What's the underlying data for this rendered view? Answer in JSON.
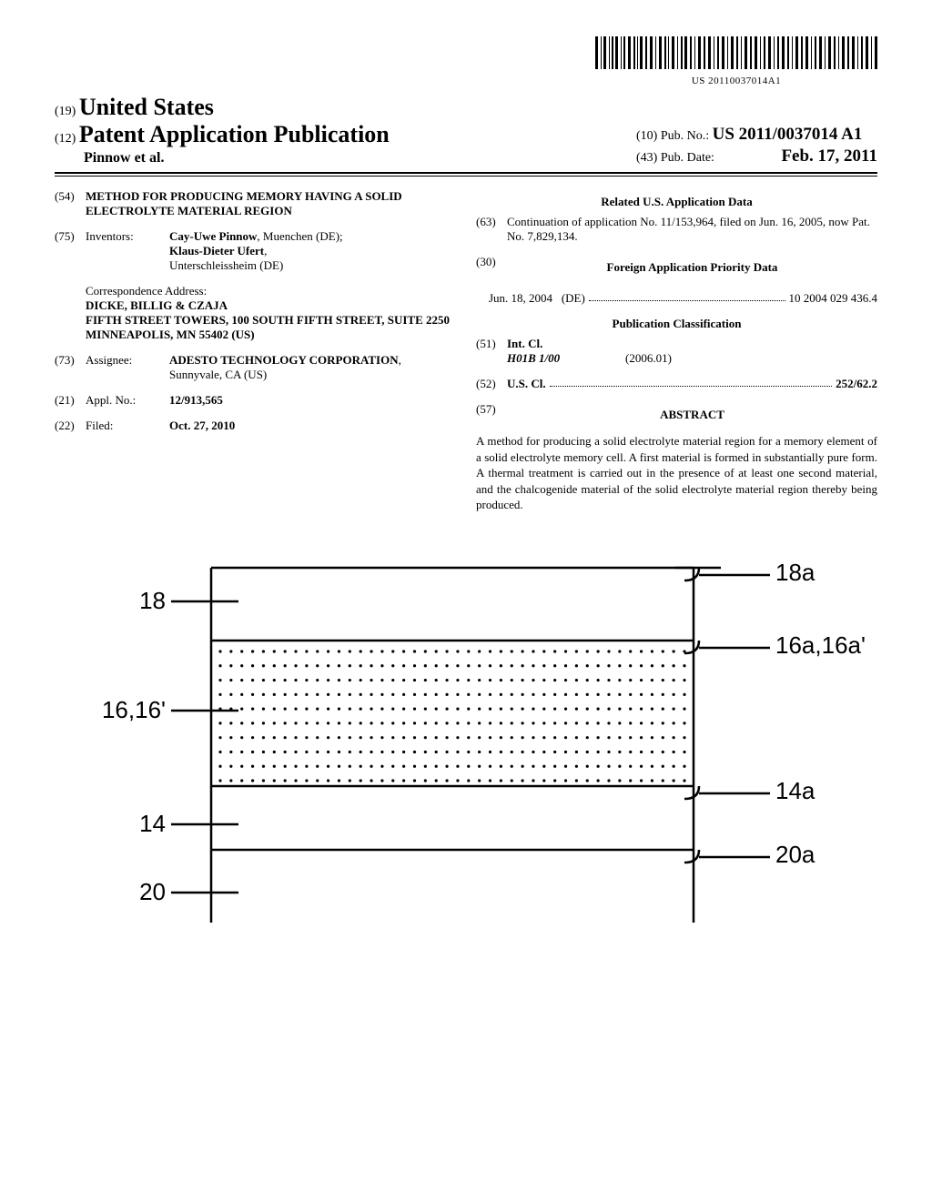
{
  "barcode_number": "US 20110037014A1",
  "header": {
    "country_code": "(19)",
    "country": "United States",
    "doc_code": "(12)",
    "doc_type": "Patent Application Publication",
    "authors": "Pinnow et al.",
    "pubno_code": "(10)",
    "pubno_label": "Pub. No.:",
    "pubno": "US 2011/0037014 A1",
    "pubdate_code": "(43)",
    "pubdate_label": "Pub. Date:",
    "pubdate": "Feb. 17, 2011"
  },
  "left": {
    "title_code": "(54)",
    "title": "METHOD FOR PRODUCING MEMORY HAVING A SOLID ELECTROLYTE MATERIAL REGION",
    "inventors_code": "(75)",
    "inventors_label": "Inventors:",
    "inventors_html_parts": {
      "inv1_name": "Cay-Uwe Pinnow",
      "inv1_loc": ", Muenchen (DE);",
      "inv2_name": "Klaus-Dieter Ufert",
      "inv2_loc": ",",
      "inv2_city": "Unterschleissheim (DE)"
    },
    "corr_heading": "Correspondence Address:",
    "corr_lines": [
      "DICKE, BILLIG & CZAJA",
      "FIFTH STREET TOWERS, 100 SOUTH FIFTH STREET, SUITE 2250",
      "MINNEAPOLIS, MN 55402 (US)"
    ],
    "assignee_code": "(73)",
    "assignee_label": "Assignee:",
    "assignee_name": "ADESTO TECHNOLOGY CORPORATION",
    "assignee_loc": ", Sunnyvale, CA (US)",
    "applno_code": "(21)",
    "applno_label": "Appl. No.:",
    "applno": "12/913,565",
    "filed_code": "(22)",
    "filed_label": "Filed:",
    "filed": "Oct. 27, 2010"
  },
  "right": {
    "related_heading": "Related U.S. Application Data",
    "related_code": "(63)",
    "related_text": "Continuation of application No. 11/153,964, filed on Jun. 16, 2005, now Pat. No. 7,829,134.",
    "foreign_code": "(30)",
    "foreign_heading": "Foreign Application Priority Data",
    "foreign_date": "Jun. 18, 2004",
    "foreign_country": "(DE)",
    "foreign_num": "10 2004 029 436.4",
    "pubclass_heading": "Publication Classification",
    "intcl_code": "(51)",
    "intcl_label": "Int. Cl.",
    "intcl_class": "H01B 1/00",
    "intcl_date": "(2006.01)",
    "uscl_code": "(52)",
    "uscl_label": "U.S. Cl.",
    "uscl_val": "252/62.2",
    "abstract_code": "(57)",
    "abstract_heading": "ABSTRACT",
    "abstract_text": "A method for producing a solid electrolyte material region for a memory element of a solid electrolyte memory cell. A first material is formed in substantially pure form. A thermal treatment is carried out in the presence of at least one second material, and the chalcogenide material of the solid electrolyte material region thereby being produced."
  },
  "figure": {
    "labels_left": [
      "18",
      "16,16'",
      "14",
      "20"
    ],
    "labels_right": [
      "18a",
      "16a,16a'",
      "14a",
      "20a"
    ],
    "stroke": "#000000",
    "stroke_width": 2.5,
    "dot_rows": 10,
    "dot_cols": 44
  }
}
